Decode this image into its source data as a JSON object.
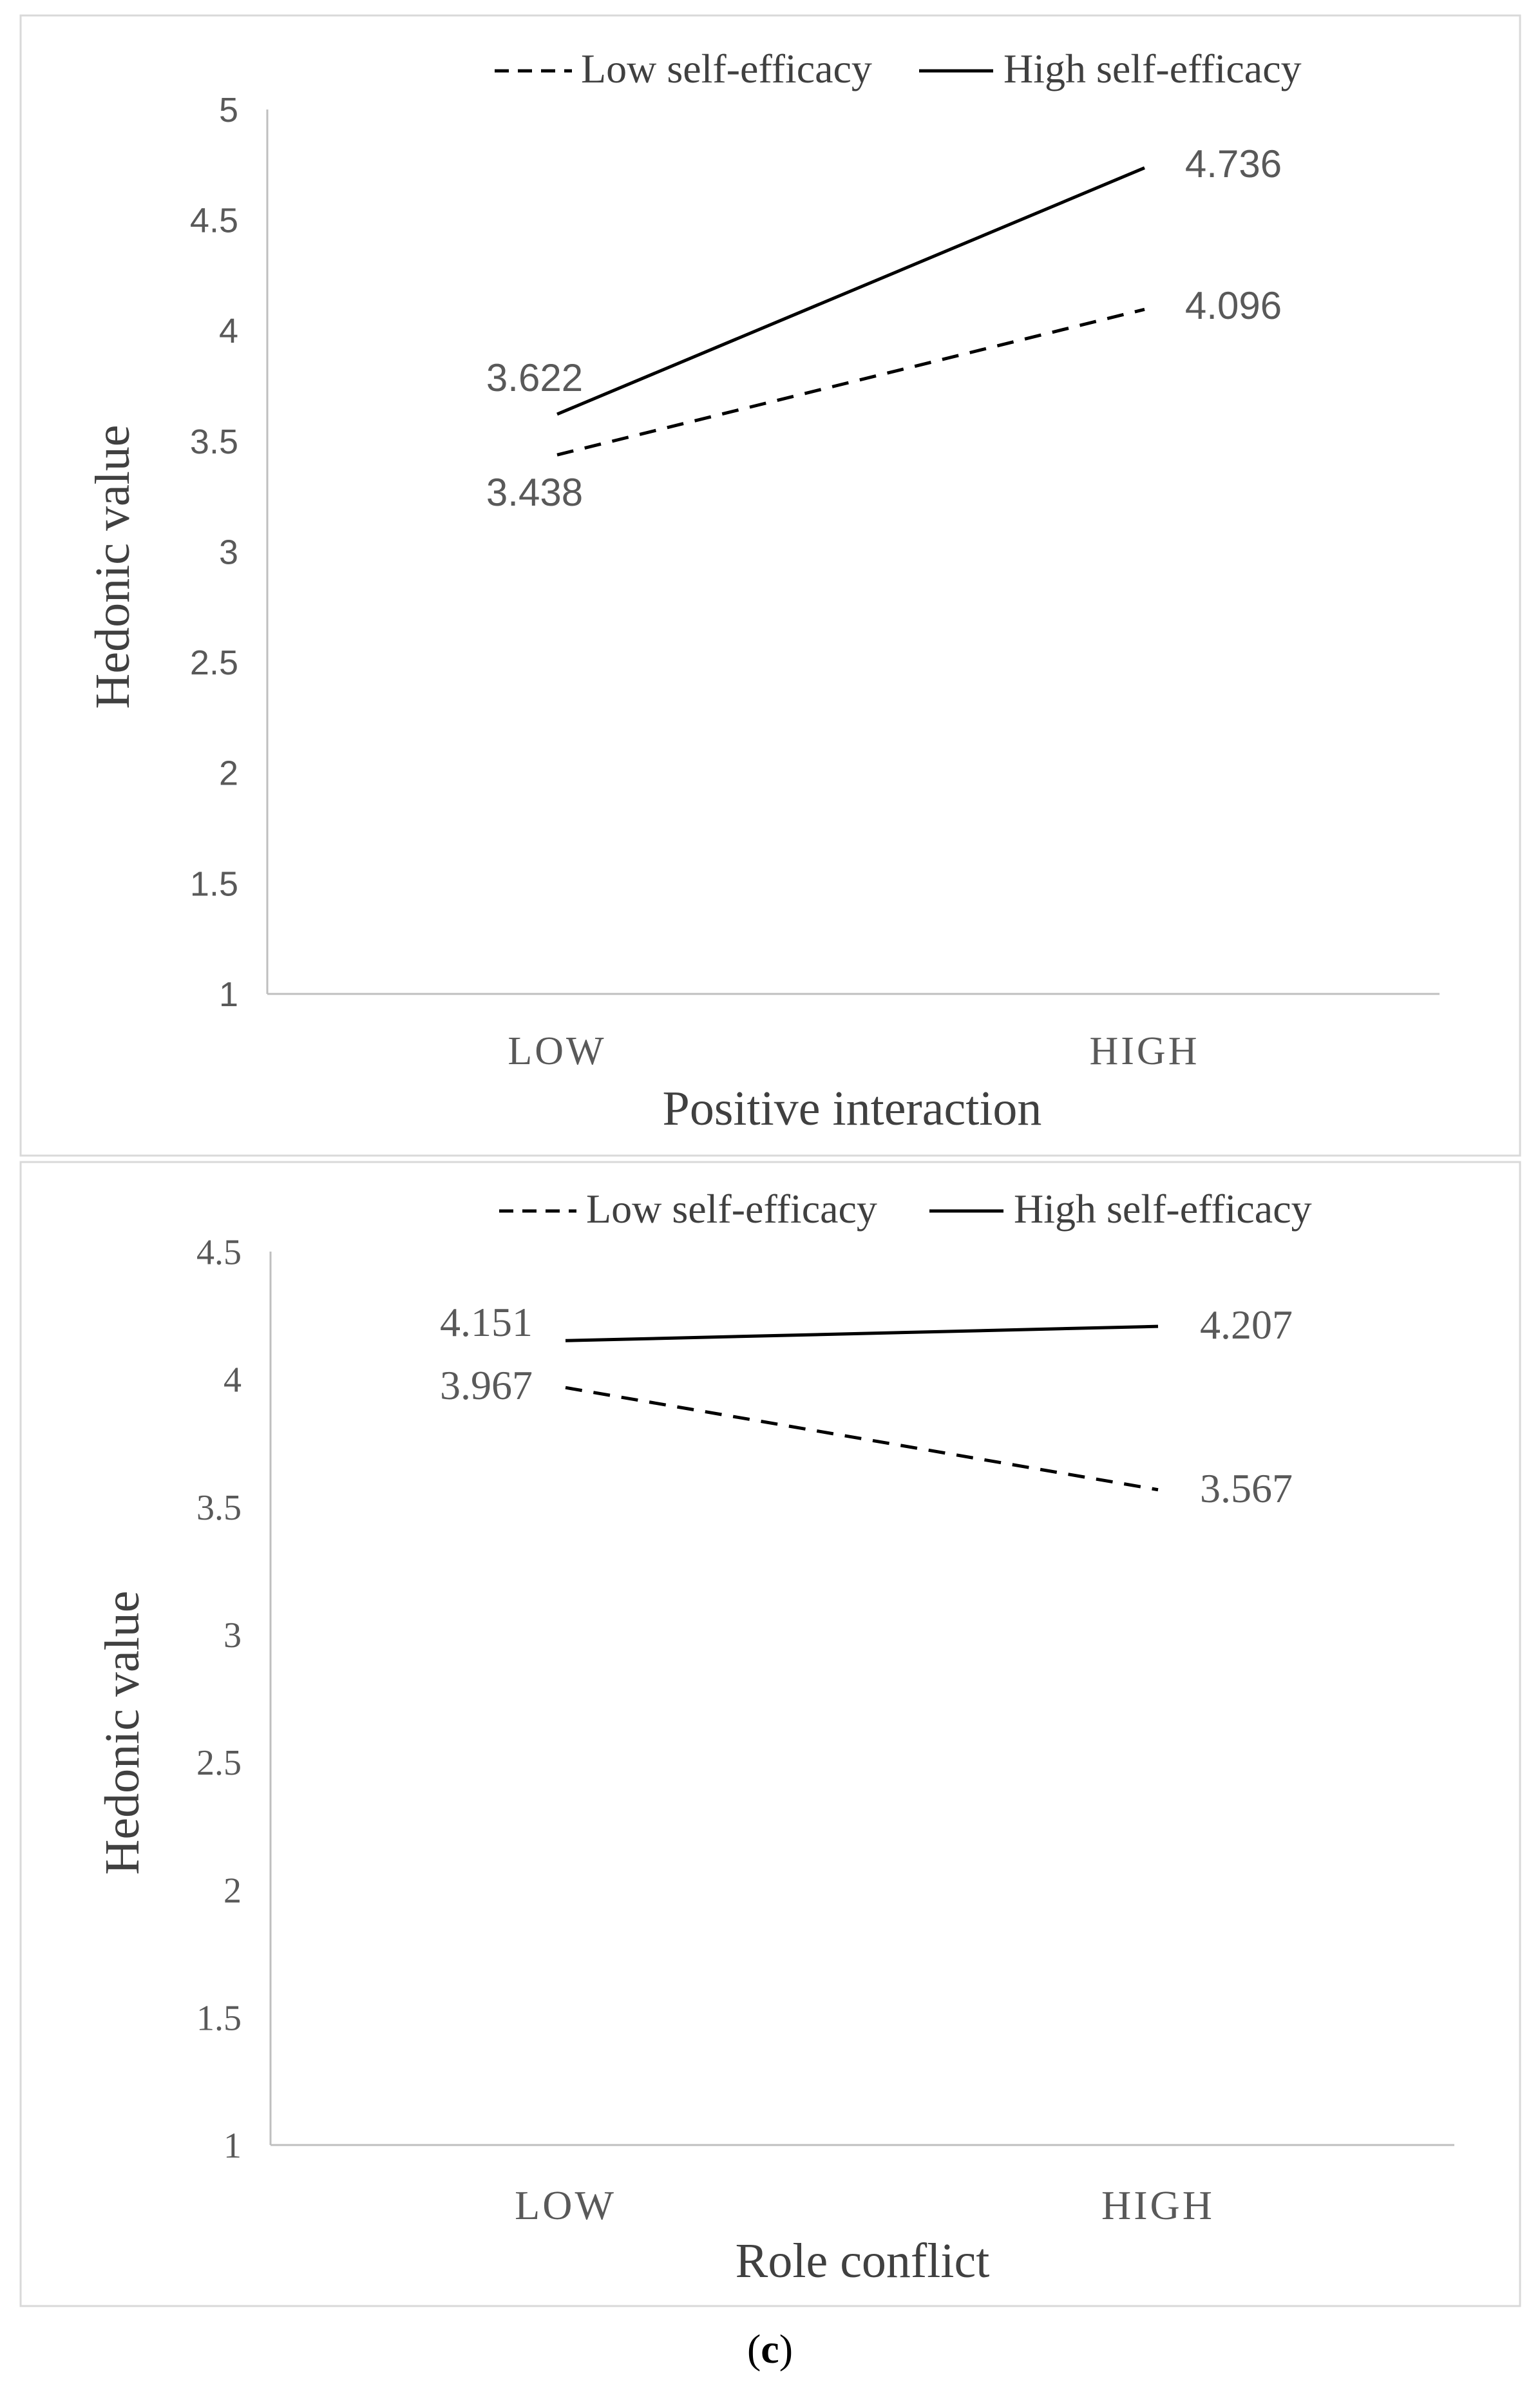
{
  "chart_data": [
    {
      "type": "line",
      "title": "",
      "xlabel": "Positive interaction",
      "ylabel": "Hedonic value",
      "categories": [
        "LOW",
        "HIGH"
      ],
      "ylim": [
        1,
        5
      ],
      "yticks": [
        "1",
        "1.5",
        "2",
        "2.5",
        "3",
        "3.5",
        "4",
        "4.5",
        "5"
      ],
      "grid": false,
      "legend_position": "top",
      "series": [
        {
          "name": "Low self-efficacy",
          "style": "dashed",
          "values": [
            3.438,
            4.096
          ],
          "labels": [
            "3.438",
            "4.096"
          ]
        },
        {
          "name": "High self-efficacy",
          "style": "solid",
          "values": [
            3.622,
            4.736
          ],
          "labels": [
            "3.622",
            "4.736"
          ]
        }
      ]
    },
    {
      "type": "line",
      "title": "",
      "xlabel": "Role conflict",
      "ylabel": "Hedonic value",
      "categories": [
        "LOW",
        "HIGH"
      ],
      "ylim": [
        1,
        4.5
      ],
      "yticks": [
        "1",
        "1.5",
        "2",
        "2.5",
        "3",
        "3.5",
        "4",
        "4.5"
      ],
      "grid": false,
      "legend_position": "top",
      "series": [
        {
          "name": "Low self-efficacy",
          "style": "dashed",
          "values": [
            3.967,
            3.567
          ],
          "labels": [
            "3.967",
            "3.567"
          ]
        },
        {
          "name": "High self-efficacy",
          "style": "solid",
          "values": [
            4.151,
            4.207
          ],
          "labels": [
            "4.151",
            "4.207"
          ]
        }
      ]
    }
  ],
  "caption": {
    "open": "(",
    "letter": "c",
    "close": ")"
  },
  "colors": {
    "line": "#000000",
    "axis": "#bfbfbf",
    "border": "#d9d9d9",
    "tick_text": "#595959",
    "label_text": "#404040"
  }
}
